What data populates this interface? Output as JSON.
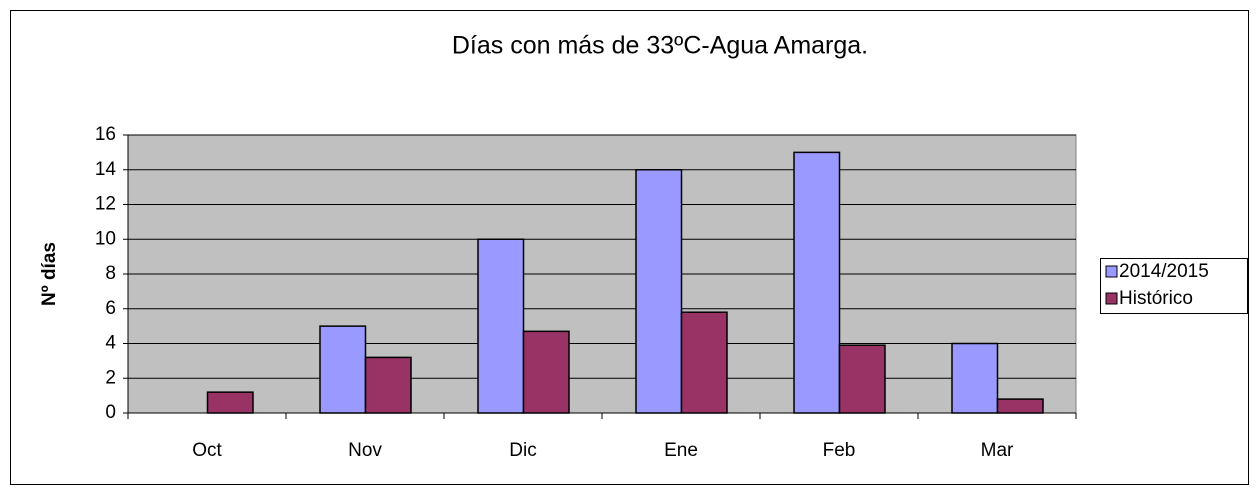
{
  "chart_data": {
    "type": "bar",
    "title": "Días con más de 33ºC-Agua Amarga.",
    "y_label": "Nº días",
    "categories": [
      "Oct",
      "Nov",
      "Dic",
      "Ene",
      "Feb",
      "Mar"
    ],
    "series": [
      {
        "name": "2014/2015",
        "color": "#9999ff",
        "values": [
          0,
          5,
          10,
          14,
          15,
          4
        ]
      },
      {
        "name": "Histórico",
        "color": "#993366",
        "values": [
          1.2,
          3.2,
          4.7,
          5.8,
          3.9,
          0.8
        ]
      }
    ],
    "ylim": [
      0,
      16
    ],
    "yticks": [
      0,
      2,
      4,
      6,
      8,
      10,
      12,
      14,
      16
    ],
    "grid": true,
    "legend": "right"
  }
}
